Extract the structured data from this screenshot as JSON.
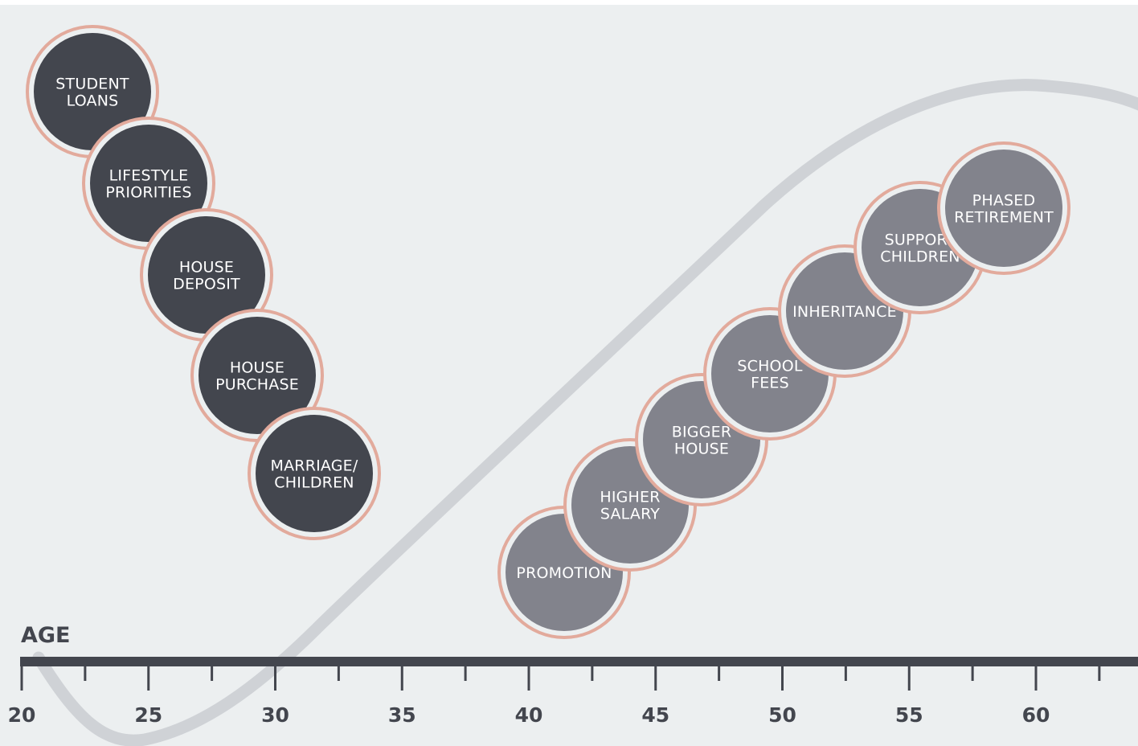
{
  "axis": {
    "title": "AGE",
    "min": 20,
    "max": 64,
    "major_ticks": [
      20,
      25,
      30,
      35,
      40,
      45,
      50,
      55,
      60
    ],
    "minor_ticks": [
      22.5,
      27.5,
      32.5,
      37.5,
      42.5,
      47.5,
      52.5,
      57.5,
      62.5
    ]
  },
  "colors": {
    "background": "#eceff0",
    "early_circle": "#43464e",
    "late_circle": "#82838c",
    "ring": "#e2aa9c",
    "curve": "#cfd2d6",
    "axis": "#43464e"
  },
  "early_life_events": [
    {
      "id": "student-loans",
      "lines": [
        "STUDENT",
        "LOANS"
      ]
    },
    {
      "id": "lifestyle-priorities",
      "lines": [
        "LIFESTYLE",
        "PRIORITIES"
      ]
    },
    {
      "id": "house-deposit",
      "lines": [
        "HOUSE",
        "DEPOSIT"
      ]
    },
    {
      "id": "house-purchase",
      "lines": [
        "HOUSE",
        "PURCHASE"
      ]
    },
    {
      "id": "marriage-children",
      "lines": [
        "MARRIAGE/",
        "CHILDREN"
      ]
    }
  ],
  "later_life_events": [
    {
      "id": "promotion",
      "lines": [
        "PROMOTION"
      ]
    },
    {
      "id": "higher-salary",
      "lines": [
        "HIGHER",
        "SALARY"
      ]
    },
    {
      "id": "bigger-house",
      "lines": [
        "BIGGER",
        "HOUSE"
      ]
    },
    {
      "id": "school-fees",
      "lines": [
        "SCHOOL",
        "FEES"
      ]
    },
    {
      "id": "inheritance",
      "lines": [
        "INHERITANCE"
      ]
    },
    {
      "id": "support-children",
      "lines": [
        "SUPPORT",
        "CHILDREN"
      ]
    },
    {
      "id": "phased-retirement",
      "lines": [
        "PHASED",
        "RETIREMENT"
      ]
    }
  ]
}
